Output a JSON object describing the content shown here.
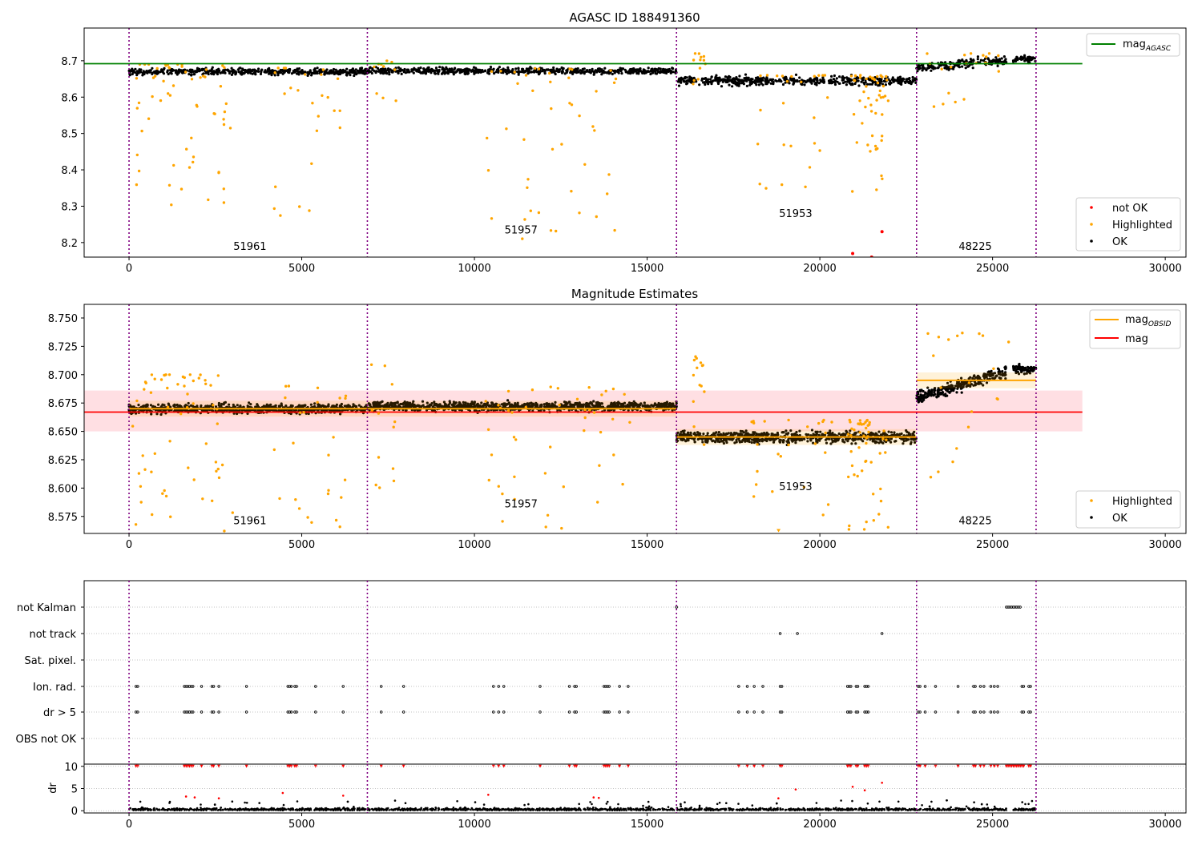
{
  "chart_data": [
    {
      "type": "scatter",
      "title": "AGASC ID 188491360",
      "xlim": [
        -1300,
        30600
      ],
      "ylim": [
        8.16,
        8.79
      ],
      "x_ticks": [
        0,
        5000,
        10000,
        15000,
        20000,
        25000,
        30000
      ],
      "y_ticks": [
        8.2,
        8.3,
        8.4,
        8.5,
        8.6,
        8.7
      ],
      "y_tick_labels": [
        "8.2",
        "8.3",
        "8.4",
        "8.5",
        "8.6",
        "8.7"
      ],
      "reference_line": {
        "label_main": "mag",
        "label_sub": "AGASC",
        "value": 8.692,
        "x_range": [
          -1300,
          27600
        ],
        "color": "#008000"
      },
      "obsid_boundaries": [
        0,
        6900,
        15850,
        22800,
        26260
      ],
      "obsid_labels": [
        {
          "text": "51961",
          "x": 3500,
          "y": 8.18
        },
        {
          "text": "51957",
          "x": 11350,
          "y": 8.225
        },
        {
          "text": "51953",
          "x": 19300,
          "y": 8.27
        },
        {
          "text": "48225",
          "x": 24500,
          "y": 8.18
        }
      ],
      "series": [
        {
          "name": "not OK",
          "color": "#ff0000",
          "points": [
            [
              20950,
              8.17
            ],
            [
              21500,
              8.16
            ],
            [
              21800,
              8.23
            ]
          ]
        },
        {
          "name": "Highlighted",
          "color": "#ffa500"
        },
        {
          "name": "OK",
          "color": "#000000",
          "segments": [
            {
              "x": [
                0,
                6900
              ],
              "center": 8.67,
              "spread": 0.015
            },
            {
              "x": [
                6900,
                15850
              ],
              "center": 8.672,
              "spread": 0.015
            },
            {
              "x": [
                15850,
                22800
              ],
              "center": 8.645,
              "spread": 0.02
            },
            {
              "x": [
                22800,
                25400
              ],
              "center": 8.69,
              "spread": 0.02
            },
            {
              "x": [
                25600,
                26260
              ],
              "center": 8.705,
              "spread": 0.015
            }
          ]
        }
      ],
      "legend_upper": "upper right",
      "legend_lower": "lower right"
    },
    {
      "type": "scatter",
      "title": "Magnitude Estimates",
      "xlim": [
        -1300,
        30600
      ],
      "ylim": [
        8.56,
        8.762
      ],
      "x_ticks": [
        0,
        5000,
        10000,
        15000,
        20000,
        25000,
        30000
      ],
      "y_ticks": [
        8.575,
        8.6,
        8.625,
        8.65,
        8.675,
        8.7,
        8.725,
        8.75
      ],
      "y_tick_labels": [
        "8.575",
        "8.600",
        "8.625",
        "8.650",
        "8.675",
        "8.700",
        "8.725",
        "8.750"
      ],
      "mag_line": {
        "label": "mag",
        "value": 8.667,
        "band": [
          8.65,
          8.686
        ],
        "x_range": [
          -1300,
          27600
        ],
        "color": "#ff0000"
      },
      "obsid_mag": {
        "label_main": "mag",
        "label_sub": "OBSID",
        "color": "#ffa500",
        "segments": [
          {
            "x": [
              0,
              15850
            ],
            "value": 8.67
          },
          {
            "x": [
              15850,
              22800
            ],
            "value": 8.645
          },
          {
            "x": [
              22800,
              26260
            ],
            "value": 8.695
          }
        ]
      },
      "obsid_boundaries": [
        0,
        6900,
        15850,
        22800,
        26260
      ],
      "obsid_labels": [
        {
          "text": "51961",
          "x": 3500,
          "y": 8.568
        },
        {
          "text": "51957",
          "x": 11350,
          "y": 8.583
        },
        {
          "text": "51953",
          "x": 19300,
          "y": 8.598
        },
        {
          "text": "48225",
          "x": 24500,
          "y": 8.568
        }
      ],
      "series": [
        {
          "name": "Highlighted",
          "color": "#ffa500"
        },
        {
          "name": "OK",
          "color": "#000000"
        }
      ]
    },
    {
      "type": "scatter",
      "title": "",
      "xlim": [
        -1300,
        30600
      ],
      "flag_rows": [
        "not Kalman",
        "not track",
        "Sat. pixel.",
        "Ion. rad.",
        "dr > 5",
        "OBS not OK"
      ],
      "flags": {
        "not Kalman": [
          15850,
          25400,
          25450,
          25500,
          25550,
          25600,
          25650,
          25700,
          25750,
          25800
        ],
        "not track": [
          18850,
          19350,
          21800
        ],
        "Sat. pixel.": [],
        "Ion. rad.": [
          200,
          250,
          1600,
          1650,
          1700,
          1750,
          1800,
          1850,
          2100,
          2400,
          2450,
          2600,
          3400,
          4600,
          4650,
          4700,
          4800,
          4850,
          5400,
          6200,
          7300,
          7950,
          10550,
          10700,
          10850,
          11900,
          12750,
          12900,
          12950,
          13750,
          13800,
          13850,
          13900,
          14200,
          14450,
          17650,
          17900,
          18100,
          18350,
          18850,
          18900,
          20800,
          20850,
          20900,
          21050,
          21100,
          21300,
          21350,
          21400,
          22850,
          22900,
          23050,
          23350,
          24000,
          24450,
          24500,
          24650,
          24750,
          24950,
          25050,
          25150,
          25850,
          25900,
          26050,
          26100
        ],
        "dr > 5": [
          200,
          250,
          1600,
          1650,
          1700,
          1750,
          1800,
          1850,
          2100,
          2400,
          2450,
          2600,
          3400,
          4600,
          4650,
          4700,
          4800,
          4850,
          5400,
          6200,
          7300,
          7950,
          10550,
          10700,
          10850,
          11900,
          12750,
          12900,
          12950,
          13750,
          13800,
          13850,
          13900,
          14200,
          14450,
          17650,
          17900,
          18100,
          18350,
          18850,
          18900,
          20800,
          20850,
          20900,
          21050,
          21100,
          21300,
          21350,
          21400,
          22850,
          22900,
          23050,
          23350,
          24000,
          24450,
          24500,
          24650,
          24750,
          24950,
          25050,
          25150,
          25850,
          25900,
          26050,
          26100
        ],
        "OBS not OK": []
      },
      "dr": {
        "ylabel": "dr",
        "y_ticks": [
          0,
          5,
          10
        ],
        "ylim": [
          -0.5,
          10.5
        ],
        "capped_value": 10,
        "points_red": [
          [
            1650,
            3.2
          ],
          [
            1900,
            3.0
          ],
          [
            2600,
            2.8
          ],
          [
            4450,
            4.0
          ],
          [
            6200,
            3.4
          ],
          [
            10400,
            3.6
          ],
          [
            13450,
            3.0
          ],
          [
            13600,
            2.9
          ],
          [
            18800,
            2.8
          ],
          [
            19300,
            4.8
          ],
          [
            20950,
            5.4
          ],
          [
            21300,
            4.6
          ],
          [
            21800,
            6.3
          ]
        ],
        "bulk_x": [
          0,
          25400
        ],
        "bulk_tail": [
          25600,
          26260
        ]
      },
      "obsid_boundaries": [
        0,
        6900,
        15850,
        22800,
        26260
      ]
    }
  ]
}
